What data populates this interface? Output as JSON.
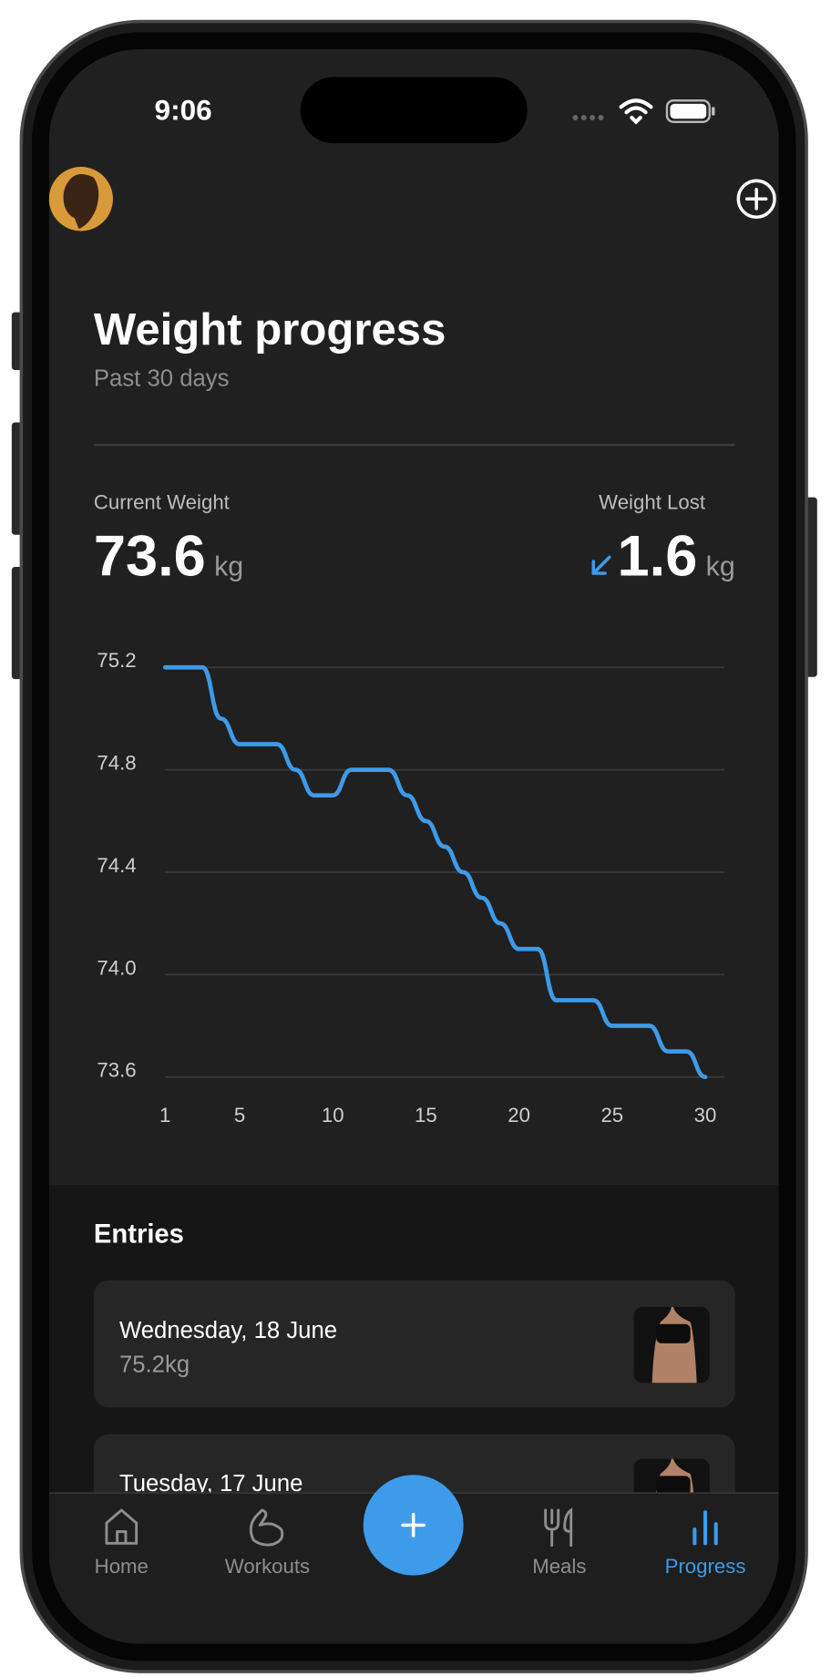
{
  "status_bar": {
    "time": "9:06"
  },
  "header": {
    "title": "Weight progress",
    "subtitle": "Past 30 days"
  },
  "summary": {
    "current_label": "Current Weight",
    "current_value": 73.6,
    "current_unit": "kg",
    "lost_label": "Weight Lost",
    "lost_value": 1.6,
    "lost_unit": "kg"
  },
  "chart_data": {
    "type": "line",
    "x": [
      1,
      2,
      3,
      4,
      5,
      6,
      7,
      8,
      9,
      10,
      11,
      12,
      13,
      14,
      15,
      16,
      17,
      18,
      19,
      20,
      21,
      22,
      23,
      24,
      25,
      26,
      27,
      28,
      29,
      30
    ],
    "values": [
      75.2,
      75.2,
      75.2,
      75.0,
      74.9,
      74.9,
      74.9,
      74.8,
      74.7,
      74.7,
      74.8,
      74.8,
      74.8,
      74.7,
      74.6,
      74.5,
      74.4,
      74.3,
      74.2,
      74.1,
      74.1,
      73.9,
      73.9,
      73.9,
      73.8,
      73.8,
      73.8,
      73.7,
      73.7,
      73.6
    ],
    "color": "#3d9be9",
    "xlim": [
      1,
      30
    ],
    "xticks": [
      1,
      5,
      10,
      15,
      20,
      25,
      30
    ],
    "ylim": [
      73.6,
      75.2
    ],
    "yticks": [
      75.2,
      74.8,
      74.4,
      {
        "value": 74,
        "label": "74.0"
      },
      73.6
    ],
    "grid": true
  },
  "entries": {
    "title": "Entries",
    "items": [
      {
        "date": "Wednesday, 18 June",
        "weight": "75.2kg"
      },
      {
        "date": "Tuesday, 17 June"
      }
    ]
  },
  "tab_bar": {
    "tabs": [
      "Home",
      "Workouts",
      "Meals",
      "Progress"
    ]
  }
}
